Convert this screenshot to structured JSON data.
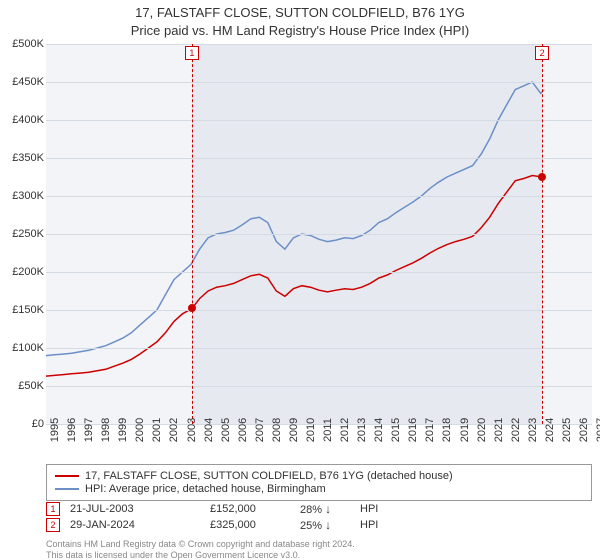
{
  "title": {
    "line1": "17, FALSTAFF CLOSE, SUTTON COLDFIELD, B76 1YG",
    "line2": "Price paid vs. HM Land Registry's House Price Index (HPI)",
    "fontsize": 13
  },
  "chart": {
    "type": "line",
    "background_color": "#f2f4f7",
    "grid_color": "#d5dbe2",
    "xlim": [
      1995,
      2027
    ],
    "ylim": [
      0,
      500000
    ],
    "y_ticks": [
      {
        "v": 0,
        "label": "£0"
      },
      {
        "v": 50000,
        "label": "£50K"
      },
      {
        "v": 100000,
        "label": "£100K"
      },
      {
        "v": 150000,
        "label": "£150K"
      },
      {
        "v": 200000,
        "label": "£200K"
      },
      {
        "v": 250000,
        "label": "£250K"
      },
      {
        "v": 300000,
        "label": "£300K"
      },
      {
        "v": 350000,
        "label": "£350K"
      },
      {
        "v": 400000,
        "label": "£400K"
      },
      {
        "v": 450000,
        "label": "£450K"
      },
      {
        "v": 500000,
        "label": "£500K"
      }
    ],
    "x_ticks": [
      1995,
      1996,
      1997,
      1998,
      1999,
      2000,
      2001,
      2002,
      2003,
      2004,
      2005,
      2006,
      2007,
      2008,
      2009,
      2010,
      2011,
      2012,
      2013,
      2014,
      2015,
      2016,
      2017,
      2018,
      2019,
      2020,
      2021,
      2022,
      2023,
      2024,
      2025,
      2026,
      2027
    ],
    "plot_bands": [
      {
        "from": 2003.55,
        "to": 2024.08,
        "color": "#e6eaf0"
      }
    ],
    "series": [
      {
        "name": "HPI: Average price, detached house, Birmingham",
        "color": "#6b8fc7",
        "width": 1.5,
        "data": [
          [
            1995,
            90000
          ],
          [
            1995.5,
            91000
          ],
          [
            1996,
            92000
          ],
          [
            1996.5,
            93000
          ],
          [
            1997,
            95000
          ],
          [
            1997.5,
            97000
          ],
          [
            1998,
            100000
          ],
          [
            1998.5,
            103000
          ],
          [
            1999,
            108000
          ],
          [
            1999.5,
            113000
          ],
          [
            2000,
            120000
          ],
          [
            2000.5,
            130000
          ],
          [
            2001,
            140000
          ],
          [
            2001.5,
            150000
          ],
          [
            2002,
            170000
          ],
          [
            2002.5,
            190000
          ],
          [
            2003,
            200000
          ],
          [
            2003.5,
            210000
          ],
          [
            2004,
            230000
          ],
          [
            2004.5,
            245000
          ],
          [
            2005,
            250000
          ],
          [
            2005.5,
            252000
          ],
          [
            2006,
            255000
          ],
          [
            2006.5,
            262000
          ],
          [
            2007,
            270000
          ],
          [
            2007.5,
            272000
          ],
          [
            2008,
            265000
          ],
          [
            2008.5,
            240000
          ],
          [
            2009,
            230000
          ],
          [
            2009.5,
            245000
          ],
          [
            2010,
            250000
          ],
          [
            2010.5,
            248000
          ],
          [
            2011,
            243000
          ],
          [
            2011.5,
            240000
          ],
          [
            2012,
            242000
          ],
          [
            2012.5,
            245000
          ],
          [
            2013,
            244000
          ],
          [
            2013.5,
            248000
          ],
          [
            2014,
            255000
          ],
          [
            2014.5,
            265000
          ],
          [
            2015,
            270000
          ],
          [
            2015.5,
            278000
          ],
          [
            2016,
            285000
          ],
          [
            2016.5,
            292000
          ],
          [
            2017,
            300000
          ],
          [
            2017.5,
            310000
          ],
          [
            2018,
            318000
          ],
          [
            2018.5,
            325000
          ],
          [
            2019,
            330000
          ],
          [
            2019.5,
            335000
          ],
          [
            2020,
            340000
          ],
          [
            2020.5,
            355000
          ],
          [
            2021,
            375000
          ],
          [
            2021.5,
            400000
          ],
          [
            2022,
            420000
          ],
          [
            2022.5,
            440000
          ],
          [
            2023,
            445000
          ],
          [
            2023.5,
            450000
          ],
          [
            2024,
            435000
          ],
          [
            2024.2,
            440000
          ]
        ]
      },
      {
        "name": "17, FALSTAFF CLOSE, SUTTON COLDFIELD, B76 1YG (detached house)",
        "color": "#cc0000",
        "width": 1.5,
        "data": [
          [
            1995,
            63000
          ],
          [
            1995.5,
            64000
          ],
          [
            1996,
            65000
          ],
          [
            1996.5,
            66000
          ],
          [
            1997,
            67000
          ],
          [
            1997.5,
            68000
          ],
          [
            1998,
            70000
          ],
          [
            1998.5,
            72000
          ],
          [
            1999,
            76000
          ],
          [
            1999.5,
            80000
          ],
          [
            2000,
            85000
          ],
          [
            2000.5,
            92000
          ],
          [
            2001,
            100000
          ],
          [
            2001.5,
            108000
          ],
          [
            2002,
            120000
          ],
          [
            2002.5,
            135000
          ],
          [
            2003,
            145000
          ],
          [
            2003.55,
            152000
          ],
          [
            2004,
            165000
          ],
          [
            2004.5,
            175000
          ],
          [
            2005,
            180000
          ],
          [
            2005.5,
            182000
          ],
          [
            2006,
            185000
          ],
          [
            2006.5,
            190000
          ],
          [
            2007,
            195000
          ],
          [
            2007.5,
            197000
          ],
          [
            2008,
            192000
          ],
          [
            2008.5,
            175000
          ],
          [
            2009,
            168000
          ],
          [
            2009.5,
            178000
          ],
          [
            2010,
            182000
          ],
          [
            2010.5,
            180000
          ],
          [
            2011,
            176000
          ],
          [
            2011.5,
            174000
          ],
          [
            2012,
            176000
          ],
          [
            2012.5,
            178000
          ],
          [
            2013,
            177000
          ],
          [
            2013.5,
            180000
          ],
          [
            2014,
            185000
          ],
          [
            2014.5,
            192000
          ],
          [
            2015,
            196000
          ],
          [
            2015.5,
            202000
          ],
          [
            2016,
            207000
          ],
          [
            2016.5,
            212000
          ],
          [
            2017,
            218000
          ],
          [
            2017.5,
            225000
          ],
          [
            2018,
            231000
          ],
          [
            2018.5,
            236000
          ],
          [
            2019,
            240000
          ],
          [
            2019.5,
            243000
          ],
          [
            2020,
            247000
          ],
          [
            2020.5,
            258000
          ],
          [
            2021,
            272000
          ],
          [
            2021.5,
            290000
          ],
          [
            2022,
            305000
          ],
          [
            2022.5,
            320000
          ],
          [
            2023,
            323000
          ],
          [
            2023.5,
            327000
          ],
          [
            2024.08,
            325000
          ]
        ]
      }
    ],
    "markers": [
      {
        "id": "1",
        "x": 2003.55,
        "y_dot": 152000,
        "dot_color": "#cc0000",
        "box_color": "#cc0000"
      },
      {
        "id": "2",
        "x": 2024.08,
        "y_dot": 325000,
        "dot_color": "#cc0000",
        "box_color": "#cc0000"
      }
    ]
  },
  "legend": {
    "items": [
      {
        "color": "#cc0000",
        "label": "17, FALSTAFF CLOSE, SUTTON COLDFIELD, B76 1YG (detached house)"
      },
      {
        "color": "#6b8fc7",
        "label": "HPI: Average price, detached house, Birmingham"
      }
    ]
  },
  "sales": [
    {
      "marker": "1",
      "color": "#cc0000",
      "date": "21-JUL-2003",
      "price": "£152,000",
      "pct": "28%",
      "arrow": "↓",
      "hpi": "HPI"
    },
    {
      "marker": "2",
      "color": "#cc0000",
      "date": "29-JAN-2024",
      "price": "£325,000",
      "pct": "25%",
      "arrow": "↓",
      "hpi": "HPI"
    }
  ],
  "footer": {
    "line1": "Contains HM Land Registry data © Crown copyright and database right 2024.",
    "line2": "This data is licensed under the Open Government Licence v3.0."
  }
}
